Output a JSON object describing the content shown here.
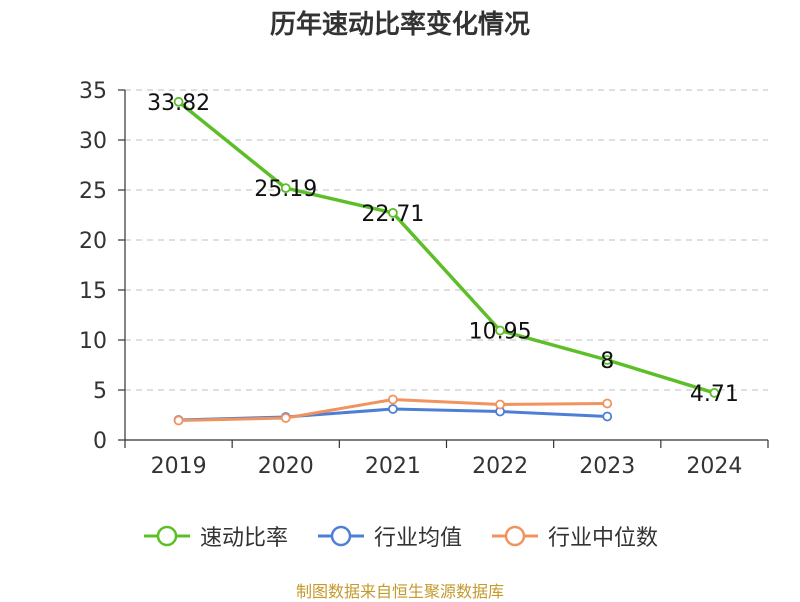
{
  "chart_data": {
    "type": "line",
    "title": "历年速动比率变化情况",
    "categories": [
      "2019",
      "2020",
      "2021",
      "2022",
      "2023",
      "2024"
    ],
    "ylim": [
      0,
      35
    ],
    "yticks": [
      0,
      5,
      10,
      15,
      20,
      25,
      30,
      35
    ],
    "grid": true,
    "legend_position": "bottom",
    "series": [
      {
        "name": "速动比率",
        "color": "#5cbf28",
        "values": [
          33.82,
          25.19,
          22.71,
          10.95,
          8,
          4.71
        ],
        "labels": [
          "33.82",
          "25.19",
          "22.71",
          "10.95",
          "8",
          "4.71"
        ]
      },
      {
        "name": "行业均值",
        "color": "#4e7fd6",
        "values": [
          2.0,
          2.3,
          3.1,
          2.85,
          2.35,
          null
        ]
      },
      {
        "name": "行业中位数",
        "color": "#f0935e",
        "values": [
          1.95,
          2.2,
          4.05,
          3.55,
          3.65,
          null
        ]
      }
    ]
  },
  "source": "制图数据来自恒生聚源数据库"
}
